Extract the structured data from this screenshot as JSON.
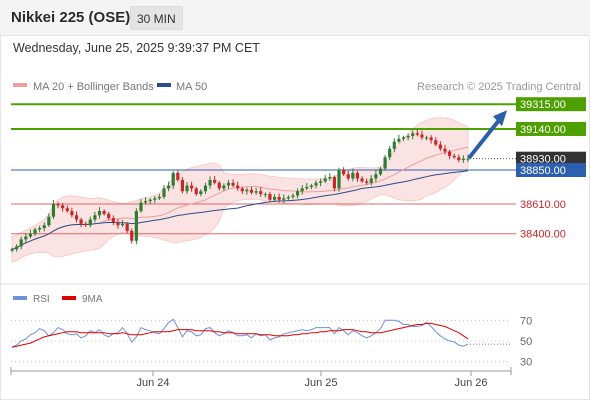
{
  "header": {
    "title": "Nikkei 225 (OSE)",
    "timeframe": "30 MIN"
  },
  "datetime": "Wednesday, June 25, 2025 9:39:37 PM CET",
  "legend": {
    "ma20_bb": "MA 20 + Bollinger Bands",
    "ma50": "MA 50",
    "credit": "Research © 2025 Trading Central",
    "ma20_color": "#f29c9c",
    "ma50_color": "#2b4c8c"
  },
  "rsi_legend": {
    "rsi": "RSI",
    "ma9": "9MA",
    "rsi_color": "#6f8fd8",
    "ma9_color": "#e00000"
  },
  "colors": {
    "bull": "#2e7d32",
    "bear": "#c62828",
    "resistance": "#4ea000",
    "support": "#e06666",
    "pivot": "#2d5fb0",
    "last": "#333333",
    "arrow": "#2d5fa8"
  },
  "chart_data": [
    {
      "type": "candlestick",
      "title": "Nikkei 225 (OSE)",
      "price_ylim": [
        38200,
        39380
      ],
      "x_tick_labels": [
        "Jun 24",
        "Jun 25",
        "Jun 26"
      ],
      "levels": [
        {
          "label": "39315.00",
          "value": 39315,
          "kind": "resistance"
        },
        {
          "label": "39140.00",
          "value": 39140,
          "kind": "resistance"
        },
        {
          "label": "38930.00",
          "value": 38930,
          "kind": "last"
        },
        {
          "label": "38850.00",
          "value": 38850,
          "kind": "pivot"
        },
        {
          "label": "38610.00",
          "value": 38610,
          "kind": "support"
        },
        {
          "label": "38400.00",
          "value": 38400,
          "kind": "support"
        }
      ],
      "close": [
        38290,
        38310,
        38360,
        38380,
        38400,
        38430,
        38440,
        38460,
        38520,
        38610,
        38600,
        38580,
        38560,
        38530,
        38500,
        38470,
        38460,
        38500,
        38530,
        38560,
        38540,
        38510,
        38480,
        38460,
        38470,
        38420,
        38350,
        38560,
        38620,
        38630,
        38640,
        38650,
        38660,
        38720,
        38740,
        38830,
        38780,
        38700,
        38740,
        38720,
        38680,
        38700,
        38740,
        38780,
        38760,
        38720,
        38740,
        38760,
        38740,
        38720,
        38700,
        38710,
        38690,
        38700,
        38680,
        38680,
        38640,
        38660,
        38640,
        38650,
        38660,
        38670,
        38700,
        38720,
        38730,
        38740,
        38760,
        38770,
        38790,
        38800,
        38720,
        38850,
        38820,
        38790,
        38830,
        38790,
        38770,
        38760,
        38790,
        38820,
        38860,
        38940,
        39000,
        39050,
        39070,
        39080,
        39090,
        39110,
        39100,
        39080,
        39080,
        39060,
        39030,
        39000,
        38980,
        38950,
        38940,
        38920,
        38930,
        38930
      ]
    },
    {
      "type": "line",
      "title": "RSI",
      "series": [
        {
          "name": "RSI"
        },
        {
          "name": "9MA"
        }
      ],
      "ylim": [
        20,
        80
      ],
      "y_ticks": [
        70,
        50,
        30
      ],
      "rsi": [
        44,
        46,
        50,
        52,
        56,
        58,
        62,
        60,
        55,
        58,
        63,
        61,
        57,
        56,
        57,
        53,
        55,
        60,
        58,
        61,
        56,
        54,
        57,
        58,
        63,
        57,
        49,
        54,
        63,
        61,
        60,
        58,
        57,
        62,
        68,
        71,
        63,
        54,
        60,
        59,
        55,
        56,
        62,
        63,
        58,
        55,
        57,
        60,
        58,
        55,
        55,
        56,
        53,
        57,
        55,
        56,
        51,
        53,
        54,
        57,
        58,
        59,
        60,
        61,
        60,
        61,
        63,
        63,
        63,
        63,
        57,
        63,
        60,
        56,
        60,
        58,
        55,
        53,
        55,
        58,
        62,
        70,
        70,
        70,
        69,
        66,
        66,
        64,
        64,
        65,
        68,
        64,
        59,
        55,
        52,
        50,
        49,
        46,
        45,
        47
      ],
      "ma9": [
        44,
        45,
        46,
        47,
        48,
        50,
        52,
        54,
        55,
        56,
        57,
        58,
        59,
        59,
        59,
        58,
        58,
        58,
        58,
        58,
        58,
        57,
        57,
        57,
        58,
        57,
        56,
        56,
        56,
        57,
        58,
        59,
        59,
        59,
        59,
        60,
        61,
        61,
        61,
        61,
        60,
        60,
        60,
        60,
        59,
        59,
        58,
        58,
        58,
        57,
        57,
        57,
        57,
        57,
        56,
        56,
        56,
        55,
        55,
        55,
        55,
        56,
        56,
        57,
        57,
        58,
        58,
        59,
        59,
        60,
        60,
        60,
        61,
        61,
        61,
        60,
        59,
        59,
        58,
        58,
        58,
        59,
        60,
        61,
        62,
        63,
        64,
        65,
        66,
        66,
        67,
        67,
        66,
        65,
        64,
        62,
        60,
        58,
        55,
        52
      ]
    }
  ]
}
